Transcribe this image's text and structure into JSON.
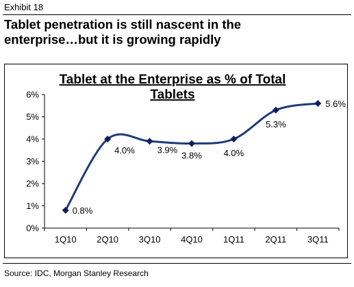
{
  "exhibit_label": "Exhibit 18",
  "headline_line1": "Tablet penetration is still nascent in the",
  "headline_line2": "enterprise…but it is growing rapidly",
  "source": "Source: IDC, Morgan Stanley Research",
  "chart_data": {
    "type": "line",
    "title_line1": "Tablet at the Enterprise as % of Total",
    "title_line2": "Tablets",
    "categories": [
      "1Q10",
      "2Q10",
      "3Q10",
      "4Q10",
      "1Q11",
      "2Q11",
      "3Q11"
    ],
    "values": [
      0.8,
      4.0,
      3.9,
      3.8,
      4.0,
      5.3,
      5.6
    ],
    "data_labels": [
      "0.8%",
      "4.0%",
      "3.9%",
      "3.8%",
      "4.0%",
      "5.3%",
      "5.6%"
    ],
    "y_ticks": [
      "0%",
      "1%",
      "2%",
      "3%",
      "4%",
      "5%",
      "6%"
    ],
    "ylim": [
      0,
      6
    ],
    "grid": false,
    "smooth": true,
    "line_color": "#1f3a78",
    "marker_color": "#0d1f5c"
  }
}
